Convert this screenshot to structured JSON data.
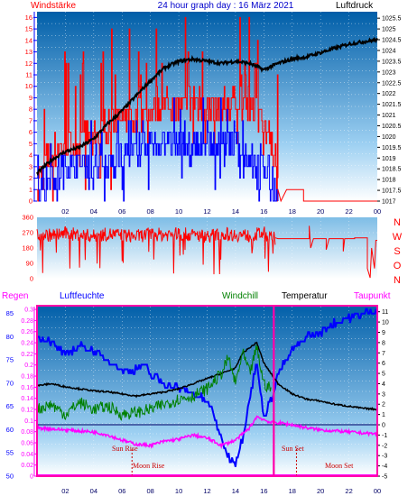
{
  "title": "24 hour graph day : 16 März 2021",
  "colors": {
    "wind": "#ff0000",
    "gust": "#0000ff",
    "pressure": "#000000",
    "direction": "#ff0000",
    "dir_letters": "#ff0000",
    "temperature": "#000000",
    "windchill": "#008000",
    "humidity": "#0000ff",
    "rain": "#ff00ff",
    "dewpoint": "#ff00ff",
    "sun": "#cc0000",
    "frame": "#ff00aa"
  },
  "x_tick_labels": [
    "02",
    "04",
    "06",
    "08",
    "10",
    "12",
    "14",
    "16",
    "18",
    "20",
    "22",
    "00"
  ],
  "chart_data": [
    {
      "type": "line",
      "left_label": "Windstärke",
      "right_label": "Luftdruck",
      "left_ticks": [
        "0",
        "1",
        "2",
        "3",
        "4",
        "5",
        "6",
        "7",
        "8",
        "9",
        "10",
        "11",
        "12",
        "13",
        "14",
        "15",
        "16"
      ],
      "right_ticks": [
        "1017",
        "1017.5",
        "1018",
        "1018.5",
        "1019",
        "1019.5",
        "1020",
        "1020.5",
        "1021",
        "1021.5",
        "1022",
        "1022.5",
        "1023",
        "1023.5",
        "1024",
        "1024.5",
        "1025",
        "1025.5"
      ],
      "ylim_left": [
        0,
        16.5
      ],
      "ylim_right": [
        1017,
        1025.8
      ],
      "x_hours": [
        0,
        24
      ],
      "series": [
        {
          "axis": "right",
          "hours": [
            0,
            1,
            2,
            3,
            4,
            5,
            6,
            7,
            8,
            9,
            10,
            11,
            12,
            13,
            14,
            15,
            16,
            17,
            18,
            19,
            20,
            21,
            22,
            23,
            24
          ],
          "values": [
            1018.3,
            1018.9,
            1019.3,
            1019.5,
            1019.9,
            1020.6,
            1021.2,
            1021.9,
            1022.6,
            1023.2,
            1023.5,
            1023.6,
            1023.5,
            1023.4,
            1023.5,
            1023.4,
            1023.1,
            1023.4,
            1023.6,
            1023.7,
            1023.9,
            1024.1,
            1024.3,
            1024.4,
            1024.5
          ]
        },
        {
          "axis": "left",
          "hours": [
            0,
            1,
            2,
            3,
            4,
            5,
            6,
            7,
            8,
            9,
            10,
            11,
            12,
            13,
            14,
            15,
            16,
            16.5,
            17,
            17.5,
            18,
            18.5,
            19,
            19.5,
            20,
            21,
            22,
            23,
            24
          ],
          "values": [
            2,
            4,
            5,
            5,
            6,
            6,
            7,
            7,
            8,
            8,
            8,
            9,
            8,
            8,
            9,
            8,
            7,
            5,
            1,
            1,
            1,
            1,
            1,
            0,
            0,
            0,
            0,
            0,
            0
          ]
        },
        {
          "axis": "left",
          "hours": [
            0,
            1,
            2,
            3,
            4,
            5,
            6,
            7,
            8,
            9,
            10,
            11,
            12,
            13,
            14,
            15,
            16,
            16.5,
            17,
            17.5,
            18,
            19,
            20,
            21,
            22,
            23,
            24
          ],
          "values": [
            1,
            2,
            3,
            3,
            3,
            3,
            4,
            4,
            5,
            5,
            5,
            5,
            5,
            5,
            5,
            4,
            3,
            2,
            0,
            0,
            0,
            0,
            0,
            0,
            0,
            0,
            0
          ]
        }
      ]
    },
    {
      "type": "line",
      "right_letters": [
        "N",
        "W",
        "S",
        "O",
        "N"
      ],
      "left_ticks": [
        "0",
        "90",
        "180",
        "270",
        "360"
      ],
      "ylim": [
        0,
        360
      ],
      "x_hours": [
        0,
        24
      ],
      "series": [
        {
          "hours": [
            0,
            1,
            2,
            3,
            4,
            5,
            6,
            7,
            8,
            9,
            10,
            11,
            12,
            13,
            14,
            15,
            16,
            16.5,
            17,
            18,
            19,
            20,
            20.5,
            21,
            22,
            23,
            23.5,
            24
          ],
          "values": [
            260,
            255,
            265,
            258,
            250,
            262,
            255,
            248,
            262,
            258,
            265,
            255,
            250,
            262,
            258,
            252,
            268,
            240,
            235,
            235,
            235,
            230,
            170,
            235,
            235,
            230,
            40,
            220
          ]
        }
      ]
    },
    {
      "type": "line",
      "labels": {
        "rain": "Regen",
        "humidity": "Luftfeuchte",
        "windchill": "Windchill",
        "temperature": "Temperatur",
        "dewpoint": "Taupunkt"
      },
      "left_ticks_humidity": [
        "50",
        "55",
        "60",
        "65",
        "70",
        "75",
        "80",
        "85"
      ],
      "left_ticks_rain": [
        "0",
        "0.02",
        "0.04",
        "0.06",
        "0.08",
        "0.1",
        "0.12",
        "0.14",
        "0.16",
        "0.18",
        "0.2",
        "0.22",
        "0.24",
        "0.26",
        "0.28",
        "0.3"
      ],
      "right_ticks": [
        "-5",
        "-4",
        "-3",
        "-2",
        "-1",
        "0",
        "1",
        "2",
        "3",
        "4",
        "5",
        "6",
        "7",
        "8",
        "9",
        "10",
        "11"
      ],
      "ylim_temp": [
        -5,
        11.5
      ],
      "x_hours": [
        0,
        24
      ],
      "annotations": [
        "Sun Rise",
        "Moon Rise",
        "Sun Set",
        "Moon Set"
      ],
      "series": [
        {
          "name": "Temperatur",
          "hours": [
            0,
            1,
            2,
            3,
            4,
            5,
            6,
            7,
            8,
            9,
            10,
            11,
            12,
            13,
            14,
            14.5,
            15,
            15.5,
            16,
            16.5,
            17,
            18,
            19,
            20,
            21,
            22,
            23,
            24
          ],
          "values": [
            3.8,
            4.0,
            3.7,
            3.5,
            3.3,
            3.2,
            3.0,
            2.8,
            3.0,
            3.2,
            3.5,
            4.0,
            4.5,
            5.0,
            5.5,
            7.0,
            7.5,
            8.0,
            6.0,
            5.0,
            4.0,
            3.0,
            2.5,
            2.3,
            2.0,
            1.8,
            1.6,
            1.5
          ]
        },
        {
          "name": "Windchill",
          "hours": [
            0,
            1,
            2,
            3,
            4,
            5,
            6,
            7,
            8,
            9,
            10,
            11,
            12,
            13,
            13.5,
            14,
            14.5,
            15,
            15.5,
            16,
            16.5
          ],
          "values": [
            1.5,
            2.0,
            1.0,
            2.2,
            1.5,
            1.8,
            1.0,
            1.2,
            1.5,
            2.0,
            2.5,
            2.8,
            3.5,
            5.0,
            6.5,
            4.0,
            7.0,
            5.0,
            7.5,
            4.0,
            3.5
          ]
        },
        {
          "name": "Taupunkt",
          "hours": [
            0,
            1,
            2,
            3,
            4,
            5,
            6,
            7,
            8,
            9,
            10,
            11,
            12,
            13,
            14,
            15,
            15.5,
            16,
            16.5,
            17,
            18,
            19,
            20,
            21,
            22,
            23,
            24
          ],
          "values": [
            -0.3,
            -0.4,
            -0.5,
            -0.6,
            -0.7,
            -1.0,
            -1.5,
            -1.9,
            -2.0,
            -1.6,
            -1.4,
            -1.0,
            -1.3,
            -2.0,
            -1.5,
            -0.3,
            0.8,
            0.5,
            0.2,
            0.2,
            0.0,
            -0.3,
            -0.5,
            -0.6,
            -0.7,
            -0.8,
            -0.9
          ]
        },
        {
          "name": "Luftfeuchte",
          "axis": "humidity",
          "hours": [
            0,
            1,
            2,
            3,
            4,
            5,
            6,
            7,
            7.5,
            8,
            9,
            10,
            11,
            12,
            12.5,
            13,
            13.5,
            14,
            14.5,
            15,
            15.5,
            16,
            16.5,
            17,
            18,
            19,
            20,
            21,
            22,
            23,
            24
          ],
          "values": [
            80,
            79,
            76,
            78,
            77,
            75,
            73,
            73,
            74,
            72,
            70,
            69,
            68,
            66,
            63,
            58,
            54,
            53,
            58,
            67,
            74,
            63,
            66,
            72,
            77,
            80,
            81,
            83,
            84,
            85,
            86
          ]
        }
      ]
    }
  ]
}
